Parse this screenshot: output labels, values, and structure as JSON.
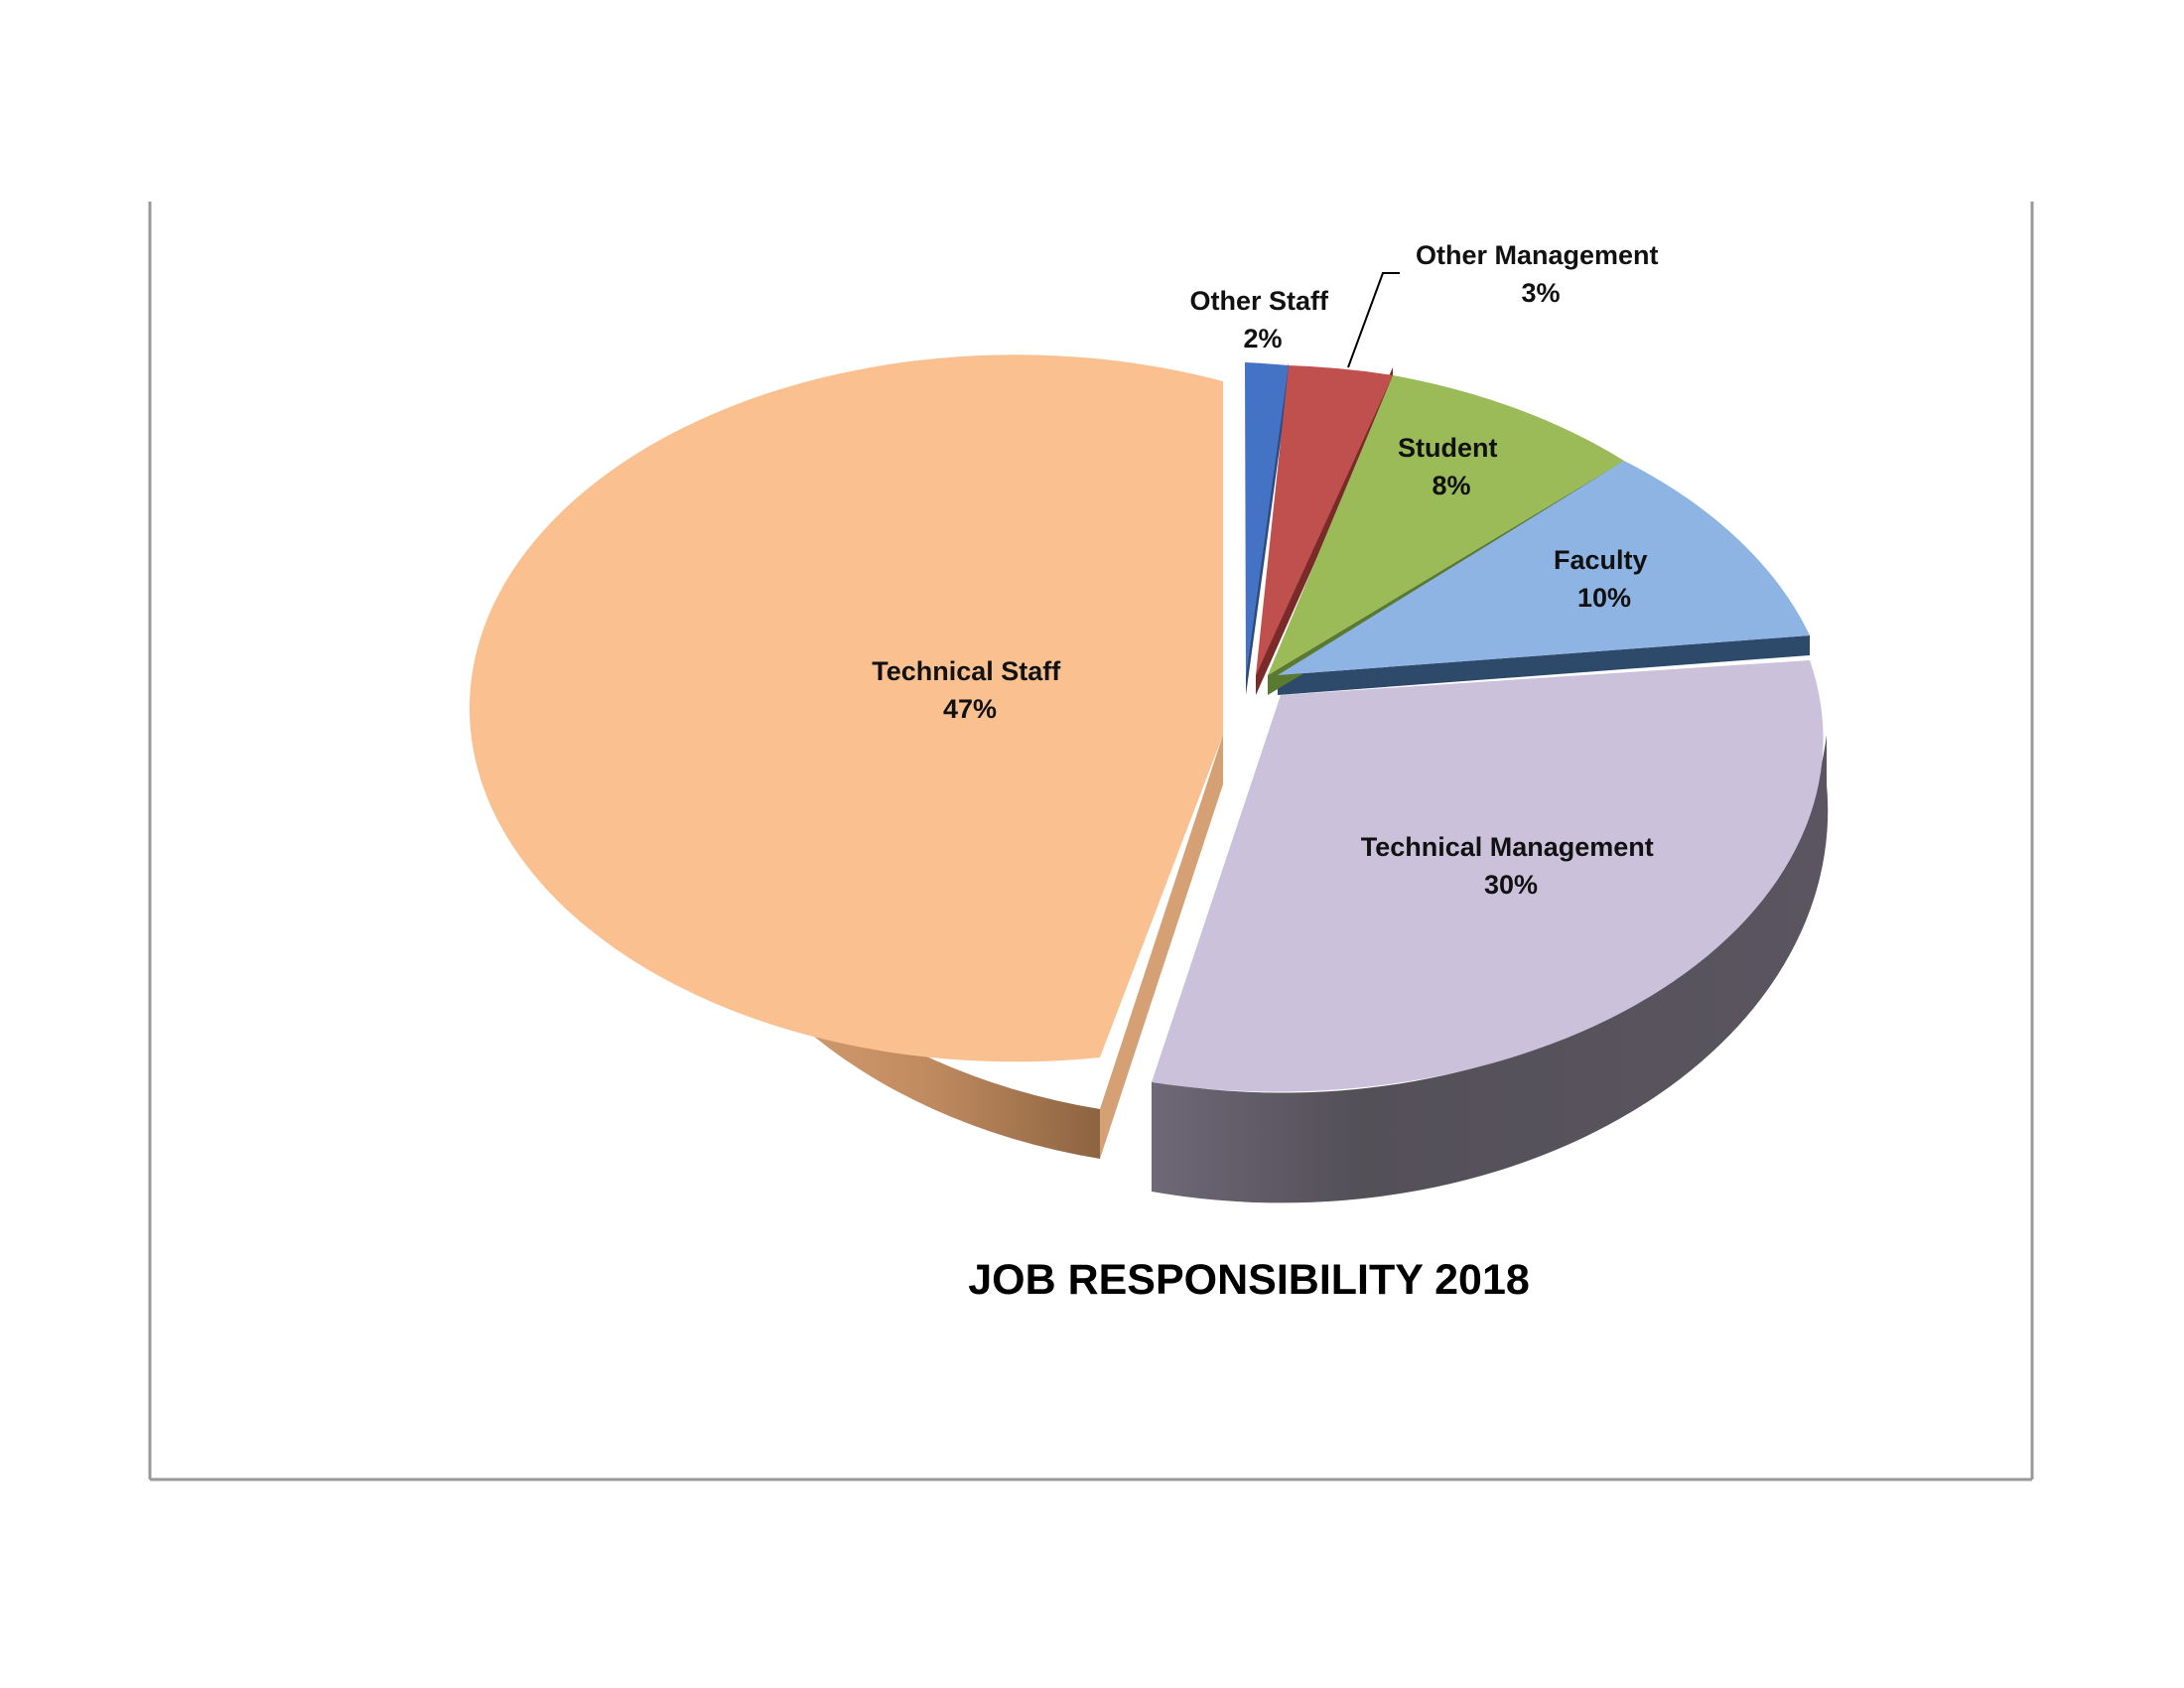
{
  "chart_data": {
    "type": "pie",
    "title": "JOB RESPONSIBILITY 2018",
    "three_d": true,
    "exploded": true,
    "slices": [
      {
        "label": "Other Staff",
        "value_label": "2%",
        "value": 2,
        "color": "#4472c4"
      },
      {
        "label": "Other Management",
        "value_label": "3%",
        "value": 3,
        "color": "#c0504d"
      },
      {
        "label": "Student",
        "value_label": "8%",
        "value": 8,
        "color": "#9bbb59"
      },
      {
        "label": "Faculty",
        "value_label": "10%",
        "value": 10,
        "color": "#8eb4e3"
      },
      {
        "label": "Technical Management",
        "value_label": "30%",
        "value": 30,
        "color": "#ccc1da"
      },
      {
        "label": "Technical Staff",
        "value_label": "47%",
        "value": 47,
        "color": "#fac090"
      }
    ]
  }
}
